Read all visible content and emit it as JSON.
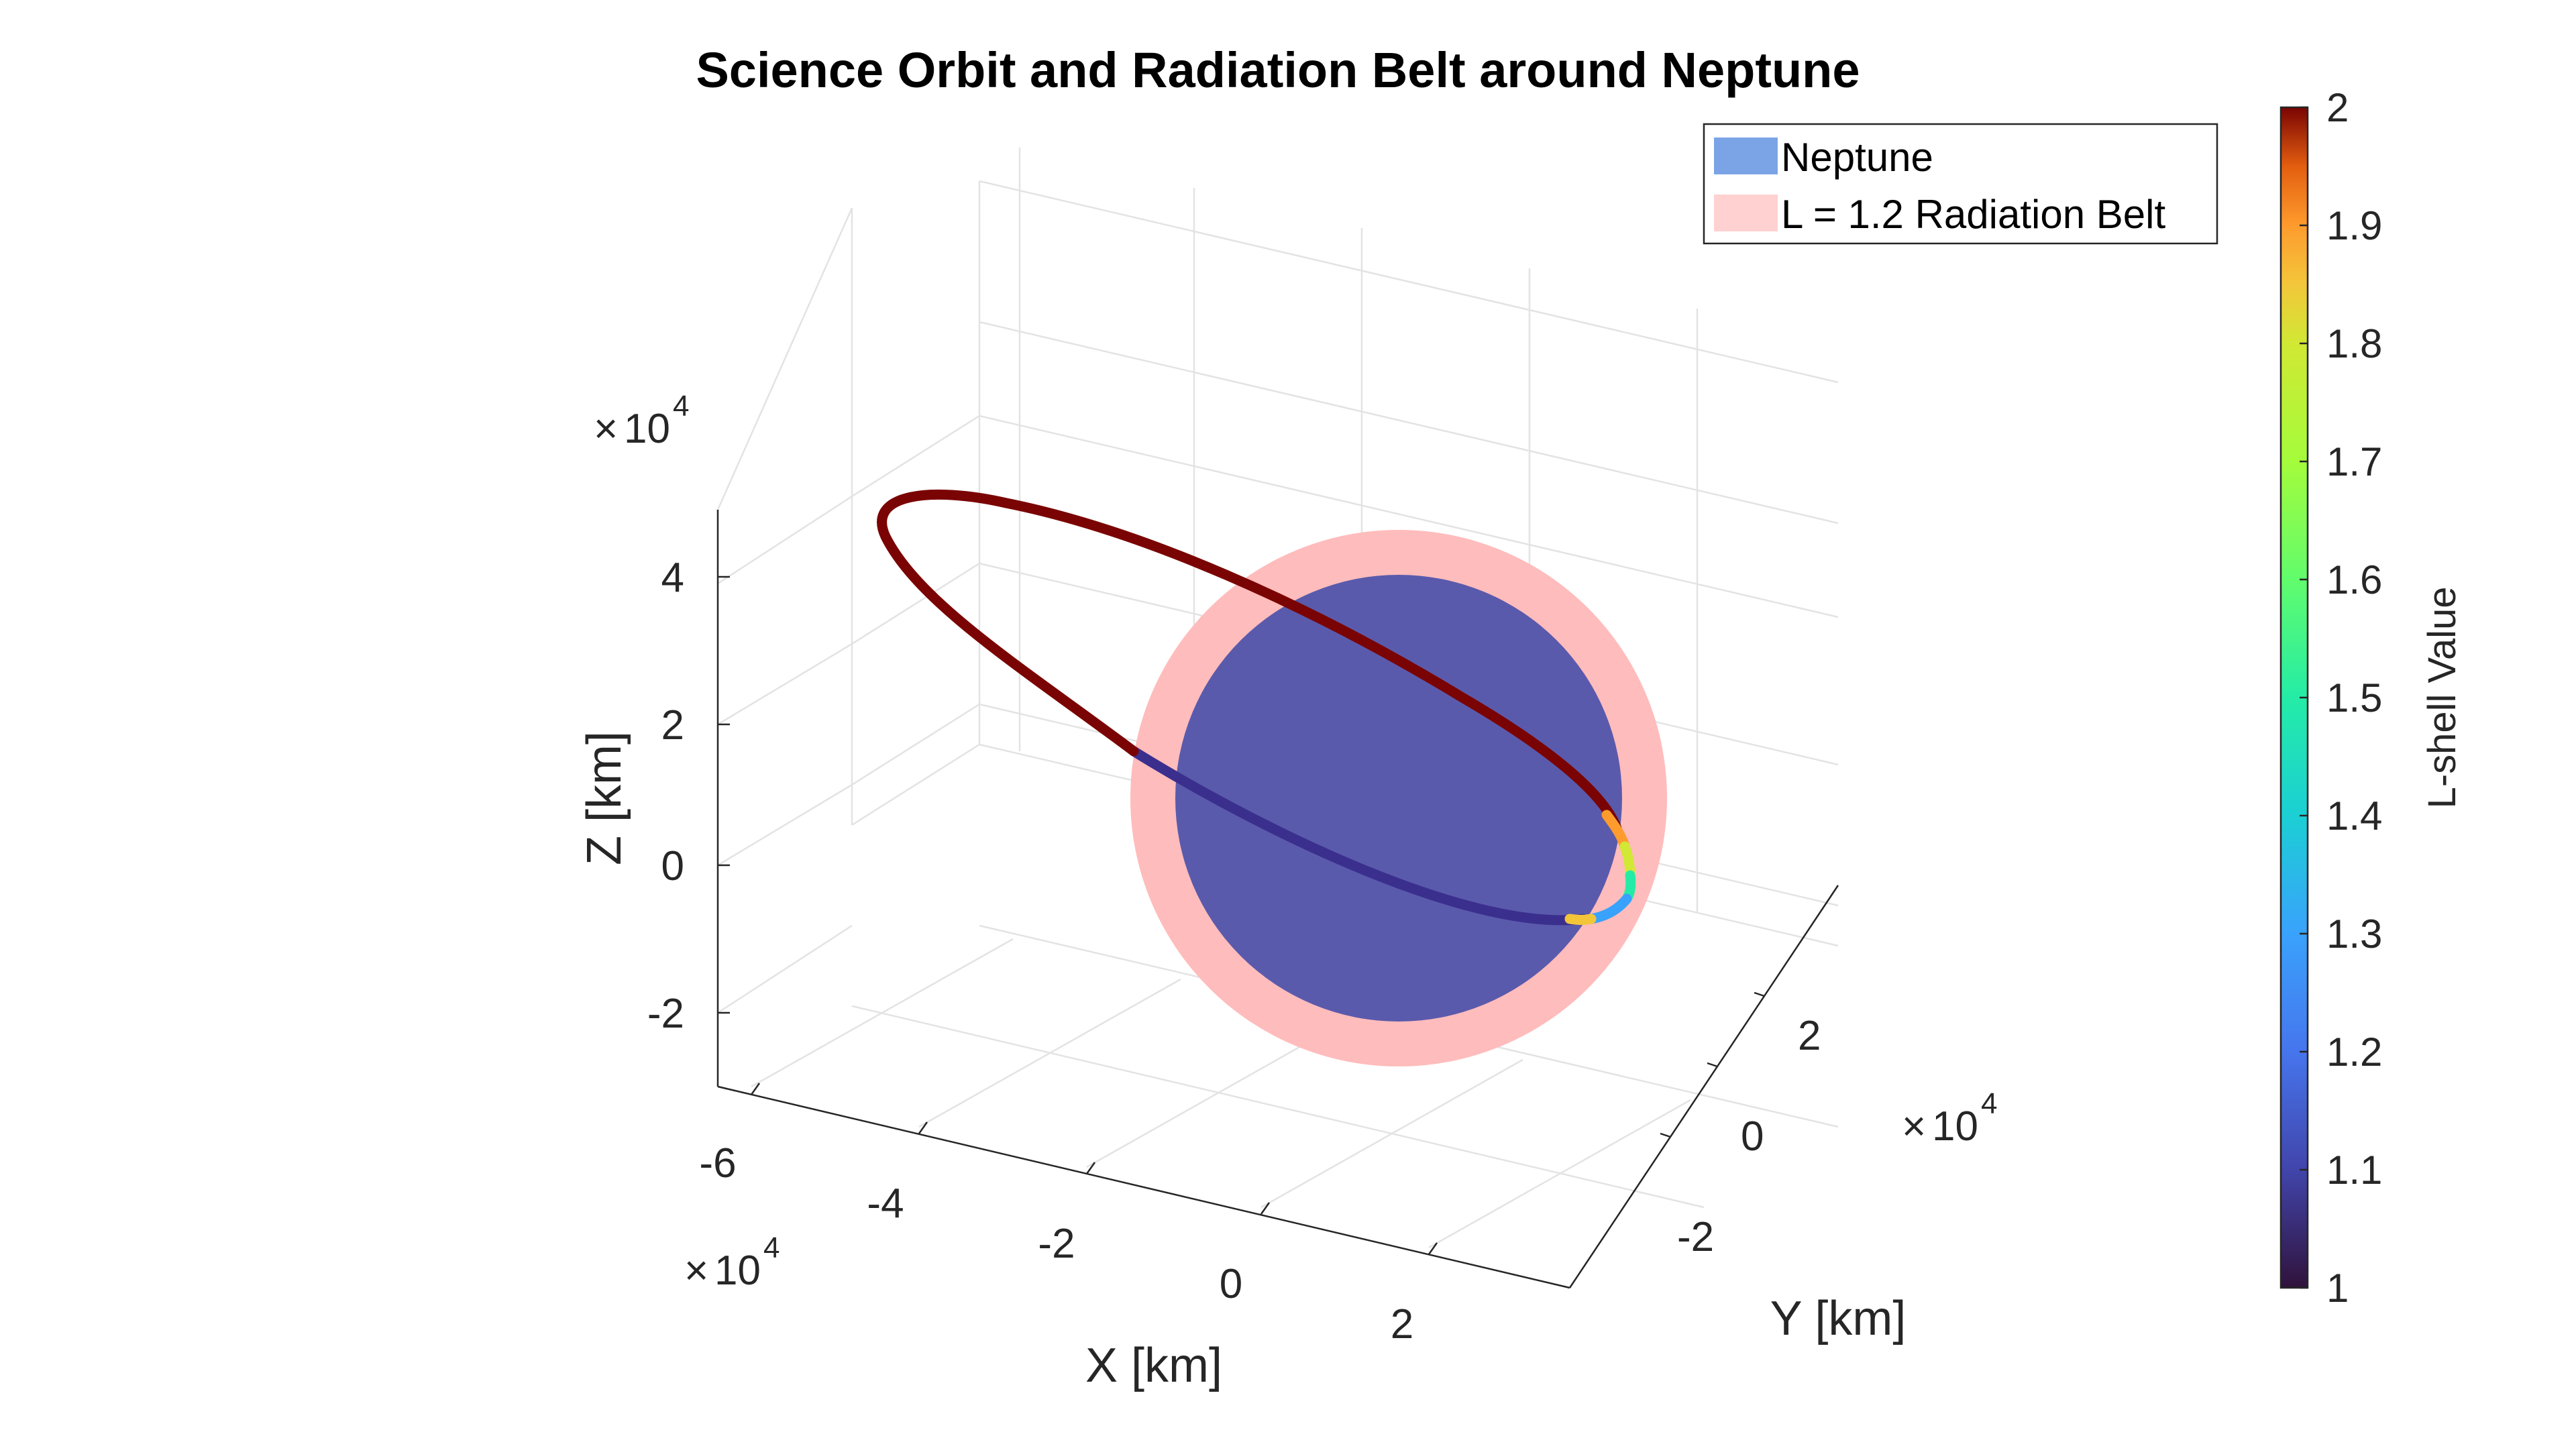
{
  "chart_data": {
    "type": "line",
    "title": "Science Orbit and Radiation Belt around Neptune",
    "xlabel": "X [km]",
    "ylabel": "Y [km]",
    "zlabel": "Z [km]",
    "x_ticks": [
      "-6",
      "-4",
      "-2",
      "0",
      "2"
    ],
    "y_ticks": [
      "-2",
      "0",
      "2"
    ],
    "z_ticks": [
      "-2",
      "0",
      "2",
      "4"
    ],
    "x_exponent": "10",
    "x_exponent_power": "4",
    "y_exponent": "10",
    "y_exponent_power": "4",
    "z_exponent": "10",
    "z_exponent_power": "4",
    "exponent_prefix": "×",
    "grid": true,
    "legend": {
      "placement": "top-right",
      "entries": [
        {
          "label": "Neptune",
          "color": "#7ba4e6"
        },
        {
          "label": "L = 1.2 Radiation Belt",
          "color": "#ffd1d1"
        }
      ]
    },
    "series": [
      {
        "type": "sphere",
        "label": "Neptune",
        "color": "#5a5aac"
      },
      {
        "type": "sphere",
        "label": "L = 1.2 Radiation Belt",
        "color": "#ffbcbc"
      },
      {
        "type": "orbit",
        "colormap": "turbo",
        "lshell_range": [
          1,
          2
        ]
      }
    ],
    "colorbar": {
      "label": "L-shell Value",
      "min": 1,
      "max": 2,
      "ticks": [
        "1",
        "1.1",
        "1.2",
        "1.3",
        "1.4",
        "1.5",
        "1.6",
        "1.7",
        "1.8",
        "1.9",
        "2"
      ]
    }
  }
}
